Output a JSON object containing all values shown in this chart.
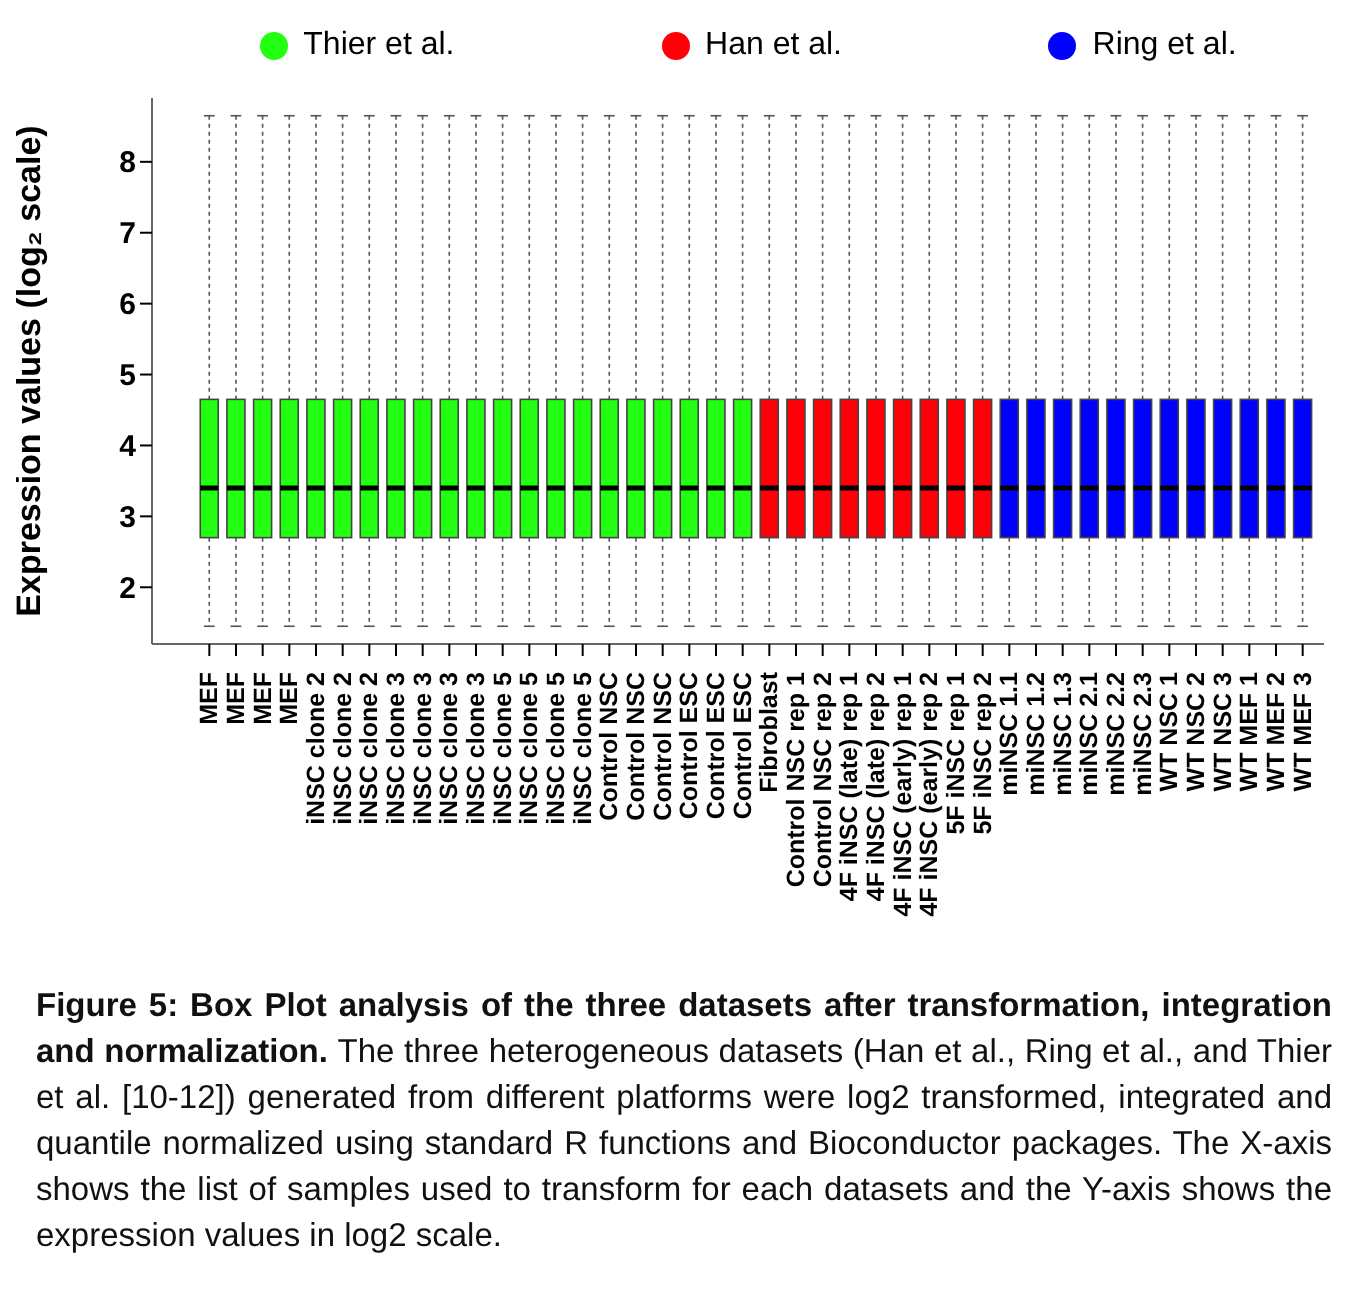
{
  "chart_data": {
    "type": "box",
    "ylabel": "Expression values (log₂ scale)",
    "categories": [
      "MEF",
      "MEF",
      "MEF",
      "MEF",
      "iNSC clone 2",
      "iNSC clone 2",
      "iNSC clone 2",
      "iNSC clone 3",
      "iNSC clone 3",
      "iNSC clone 3",
      "iNSC clone 3",
      "iNSC clone 5",
      "iNSC clone 5",
      "iNSC clone 5",
      "iNSC clone 5",
      "Control NSC",
      "Control NSC",
      "Control NSC",
      "Control ESC",
      "Control ESC",
      "Control ESC",
      "Fibroblast",
      "Control NSC rep 1",
      "Control NSC rep 2",
      "4F iNSC (late) rep 1",
      "4F iNSC (late) rep 2",
      "4F iNSC (early) rep 1",
      "4F iNSC (early) rep 2",
      "5F iNSC rep 1",
      "5F iNSC rep 2",
      "miNSC 1.1",
      "miNSC 1.2",
      "miNSC 1.3",
      "miNSC 2.1",
      "miNSC 2.2",
      "miNSC 2.3",
      "WT NSC 1",
      "WT NSC 2",
      "WT NSC 3",
      "WT MEF 1",
      "WT MEF 2",
      "WT MEF 3"
    ],
    "series": [
      {
        "name": "Thier et al.",
        "color": "#22ff11",
        "boxes": [
          {
            "low": 1.45,
            "q1": 2.7,
            "median": 3.4,
            "q3": 4.65,
            "high": 8.65
          },
          {
            "low": 1.45,
            "q1": 2.7,
            "median": 3.4,
            "q3": 4.65,
            "high": 8.65
          },
          {
            "low": 1.45,
            "q1": 2.7,
            "median": 3.4,
            "q3": 4.65,
            "high": 8.65
          },
          {
            "low": 1.45,
            "q1": 2.7,
            "median": 3.4,
            "q3": 4.65,
            "high": 8.65
          },
          {
            "low": 1.45,
            "q1": 2.7,
            "median": 3.4,
            "q3": 4.65,
            "high": 8.65
          },
          {
            "low": 1.45,
            "q1": 2.7,
            "median": 3.4,
            "q3": 4.65,
            "high": 8.65
          },
          {
            "low": 1.45,
            "q1": 2.7,
            "median": 3.4,
            "q3": 4.65,
            "high": 8.65
          },
          {
            "low": 1.45,
            "q1": 2.7,
            "median": 3.4,
            "q3": 4.65,
            "high": 8.65
          },
          {
            "low": 1.45,
            "q1": 2.7,
            "median": 3.4,
            "q3": 4.65,
            "high": 8.65
          },
          {
            "low": 1.45,
            "q1": 2.7,
            "median": 3.4,
            "q3": 4.65,
            "high": 8.65
          },
          {
            "low": 1.45,
            "q1": 2.7,
            "median": 3.4,
            "q3": 4.65,
            "high": 8.65
          },
          {
            "low": 1.45,
            "q1": 2.7,
            "median": 3.4,
            "q3": 4.65,
            "high": 8.65
          },
          {
            "low": 1.45,
            "q1": 2.7,
            "median": 3.4,
            "q3": 4.65,
            "high": 8.65
          },
          {
            "low": 1.45,
            "q1": 2.7,
            "median": 3.4,
            "q3": 4.65,
            "high": 8.65
          },
          {
            "low": 1.45,
            "q1": 2.7,
            "median": 3.4,
            "q3": 4.65,
            "high": 8.65
          },
          {
            "low": 1.45,
            "q1": 2.7,
            "median": 3.4,
            "q3": 4.65,
            "high": 8.65
          },
          {
            "low": 1.45,
            "q1": 2.7,
            "median": 3.4,
            "q3": 4.65,
            "high": 8.65
          },
          {
            "low": 1.45,
            "q1": 2.7,
            "median": 3.4,
            "q3": 4.65,
            "high": 8.65
          },
          {
            "low": 1.45,
            "q1": 2.7,
            "median": 3.4,
            "q3": 4.65,
            "high": 8.65
          },
          {
            "low": 1.45,
            "q1": 2.7,
            "median": 3.4,
            "q3": 4.65,
            "high": 8.65
          },
          {
            "low": 1.45,
            "q1": 2.7,
            "median": 3.4,
            "q3": 4.65,
            "high": 8.65
          },
          null,
          null,
          null,
          null,
          null,
          null,
          null,
          null,
          null,
          null,
          null,
          null,
          null,
          null,
          null,
          null,
          null,
          null,
          null,
          null,
          null
        ]
      },
      {
        "name": "Han et al.",
        "color": "#ff0008",
        "boxes": [
          null,
          null,
          null,
          null,
          null,
          null,
          null,
          null,
          null,
          null,
          null,
          null,
          null,
          null,
          null,
          null,
          null,
          null,
          null,
          null,
          null,
          {
            "low": 1.45,
            "q1": 2.7,
            "median": 3.4,
            "q3": 4.65,
            "high": 8.65
          },
          {
            "low": 1.45,
            "q1": 2.7,
            "median": 3.4,
            "q3": 4.65,
            "high": 8.65
          },
          {
            "low": 1.45,
            "q1": 2.7,
            "median": 3.4,
            "q3": 4.65,
            "high": 8.65
          },
          {
            "low": 1.45,
            "q1": 2.7,
            "median": 3.4,
            "q3": 4.65,
            "high": 8.65
          },
          {
            "low": 1.45,
            "q1": 2.7,
            "median": 3.4,
            "q3": 4.65,
            "high": 8.65
          },
          {
            "low": 1.45,
            "q1": 2.7,
            "median": 3.4,
            "q3": 4.65,
            "high": 8.65
          },
          {
            "low": 1.45,
            "q1": 2.7,
            "median": 3.4,
            "q3": 4.65,
            "high": 8.65
          },
          {
            "low": 1.45,
            "q1": 2.7,
            "median": 3.4,
            "q3": 4.65,
            "high": 8.65
          },
          {
            "low": 1.45,
            "q1": 2.7,
            "median": 3.4,
            "q3": 4.65,
            "high": 8.65
          },
          null,
          null,
          null,
          null,
          null,
          null,
          null,
          null,
          null,
          null,
          null,
          null
        ]
      },
      {
        "name": "Ring et al.",
        "color": "#0000ff",
        "boxes": [
          null,
          null,
          null,
          null,
          null,
          null,
          null,
          null,
          null,
          null,
          null,
          null,
          null,
          null,
          null,
          null,
          null,
          null,
          null,
          null,
          null,
          null,
          null,
          null,
          null,
          null,
          null,
          null,
          null,
          null,
          {
            "low": 1.45,
            "q1": 2.7,
            "median": 3.4,
            "q3": 4.65,
            "high": 8.65
          },
          {
            "low": 1.45,
            "q1": 2.7,
            "median": 3.4,
            "q3": 4.65,
            "high": 8.65
          },
          {
            "low": 1.45,
            "q1": 2.7,
            "median": 3.4,
            "q3": 4.65,
            "high": 8.65
          },
          {
            "low": 1.45,
            "q1": 2.7,
            "median": 3.4,
            "q3": 4.65,
            "high": 8.65
          },
          {
            "low": 1.45,
            "q1": 2.7,
            "median": 3.4,
            "q3": 4.65,
            "high": 8.65
          },
          {
            "low": 1.45,
            "q1": 2.7,
            "median": 3.4,
            "q3": 4.65,
            "high": 8.65
          },
          {
            "low": 1.45,
            "q1": 2.7,
            "median": 3.4,
            "q3": 4.65,
            "high": 8.65
          },
          {
            "low": 1.45,
            "q1": 2.7,
            "median": 3.4,
            "q3": 4.65,
            "high": 8.65
          },
          {
            "low": 1.45,
            "q1": 2.7,
            "median": 3.4,
            "q3": 4.65,
            "high": 8.65
          },
          {
            "low": 1.45,
            "q1": 2.7,
            "median": 3.4,
            "q3": 4.65,
            "high": 8.65
          },
          {
            "low": 1.45,
            "q1": 2.7,
            "median": 3.4,
            "q3": 4.65,
            "high": 8.65
          },
          {
            "low": 1.45,
            "q1": 2.7,
            "median": 3.4,
            "q3": 4.65,
            "high": 8.65
          }
        ]
      }
    ],
    "ylim": [
      1.2,
      8.9
    ],
    "yticks": [
      2,
      3,
      4,
      5,
      6,
      7,
      8
    ],
    "legend": "top",
    "grid": false,
    "annotations": [
      "Figure 5: Box Plot analysis of the three datasets after transformation, integration and normalization.",
      "The three heterogeneous datasets (Han et al., Ring et al., and Thier et al. [10-12]) generated from different platforms were log2 transformed, integrated and quantile normalized using standard R functions and Bioconductor packages. The X-axis shows the list of samples used to transform for each datasets and the Y-axis shows the expression values in log2 scale."
    ]
  }
}
